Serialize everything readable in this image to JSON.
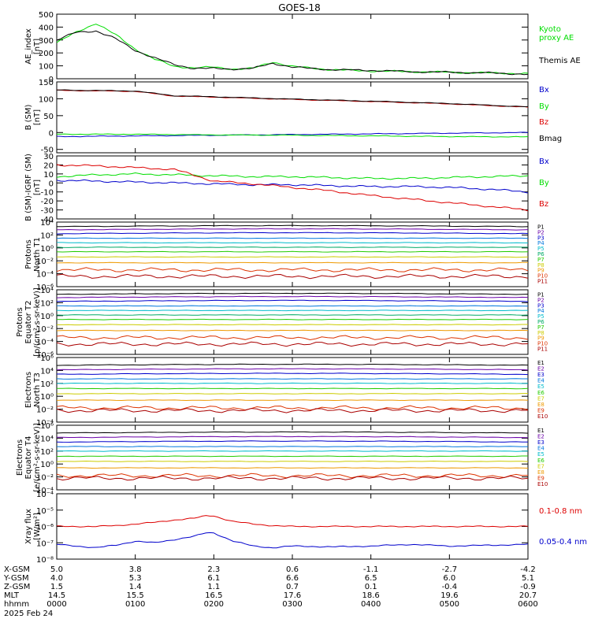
{
  "title": "GOES-18",
  "colors": {
    "black": "#000000",
    "green": "#00dd00",
    "blue": "#0000cc",
    "red": "#dd0000"
  },
  "chart_data": [
    {
      "type": "line",
      "panel": "ae",
      "ylabel": [
        "AE_index",
        "[nT]"
      ],
      "ylim": [
        0,
        500
      ],
      "ticks": [
        "500",
        "400",
        "300",
        "200",
        "100",
        "0"
      ],
      "x": [
        0,
        0.25,
        0.5,
        0.75,
        1.0,
        1.25,
        1.5,
        1.75,
        2.0,
        2.25,
        2.5,
        2.75,
        3.0,
        3.5,
        4.0,
        4.5,
        5.0,
        5.5,
        6.0
      ],
      "series": [
        {
          "name": "Kyoto proxy AE",
          "color": "#00dd00",
          "values": [
            280,
            360,
            430,
            340,
            230,
            150,
            95,
            85,
            90,
            75,
            80,
            130,
            95,
            70,
            60,
            55,
            50,
            45,
            40
          ]
        },
        {
          "name": "Themis AE",
          "color": "#000000",
          "values": [
            300,
            360,
            370,
            310,
            220,
            160,
            110,
            80,
            80,
            75,
            80,
            120,
            90,
            70,
            65,
            55,
            50,
            45,
            35
          ]
        }
      ]
    },
    {
      "type": "line",
      "panel": "b",
      "ylabel": [
        "B (SM)",
        "[nT]"
      ],
      "ylim": [
        -60,
        150
      ],
      "ticks": [
        "150",
        "100",
        "50",
        "0",
        "-50"
      ],
      "x": [
        0,
        1,
        1.5,
        2,
        3,
        4,
        5,
        6
      ],
      "series": [
        {
          "name": "Bx",
          "color": "#0000cc",
          "values": [
            -12,
            -10,
            -9,
            -8,
            -6,
            -4,
            -2,
            0
          ]
        },
        {
          "name": "By",
          "color": "#00dd00",
          "values": [
            -5,
            -5,
            -6,
            -7,
            -8,
            -10,
            -12,
            -13
          ]
        },
        {
          "name": "Bz",
          "color": "#dd0000",
          "values": [
            125,
            122,
            108,
            105,
            98,
            92,
            85,
            75
          ]
        },
        {
          "name": "Bmag",
          "color": "#000000",
          "values": [
            126,
            123,
            109,
            106,
            99,
            93,
            86,
            76
          ]
        }
      ]
    },
    {
      "type": "line",
      "panel": "db",
      "ylabel": [
        "B (SM)-IGRF (SM)",
        "[nT]"
      ],
      "ylim": [
        -40,
        30
      ],
      "ticks": [
        "30",
        "20",
        "10",
        "0",
        "-10",
        "-20",
        "-30",
        "-40"
      ],
      "x": [
        0,
        0.5,
        1.0,
        1.5,
        2.0,
        2.5,
        3.0,
        3.5,
        4.0,
        4.5,
        5.0,
        5.5,
        6.0
      ],
      "series": [
        {
          "name": "Bx",
          "color": "#0000cc",
          "values": [
            3,
            2,
            1,
            0,
            -1,
            -2,
            -2,
            -3,
            -4,
            -4,
            -5,
            -7,
            -10
          ]
        },
        {
          "name": "By",
          "color": "#00dd00",
          "values": [
            7,
            9,
            10,
            9,
            8,
            7,
            7,
            6,
            5,
            5,
            6,
            7,
            8
          ]
        },
        {
          "name": "Bz",
          "color": "#dd0000",
          "values": [
            20,
            19,
            17,
            15,
            2,
            -1,
            -5,
            -9,
            -14,
            -18,
            -22,
            -26,
            -30
          ]
        }
      ]
    },
    {
      "type": "line",
      "panel": "p1",
      "ylabel": [
        "Protons",
        "North T1"
      ],
      "scale": "log",
      "ylim_exp": [
        -6,
        4
      ],
      "ticks_exp": [
        4,
        2,
        0,
        -2,
        -4,
        -6
      ],
      "series_names": [
        "P1",
        "P2",
        "P3",
        "P4",
        "P5",
        "P6",
        "P7",
        "P8",
        "P9",
        "P10",
        "P11"
      ],
      "series_colors": [
        "#000000",
        "#6a00a8",
        "#0000cc",
        "#0077dd",
        "#00bbcc",
        "#00aa66",
        "#22cc00",
        "#cccc00",
        "#ee9900",
        "#dd3300",
        "#aa0000"
      ],
      "series_levels_exp": [
        3.3,
        2.8,
        2.2,
        1.5,
        0.8,
        0.1,
        -0.6,
        -1.4,
        -2.3,
        -3.4,
        -4.4
      ]
    },
    {
      "type": "line",
      "panel": "p2",
      "ylabel": [
        "Protons",
        "Equator T2",
        "[p/(cm²-s-sr-keV)]"
      ],
      "scale": "log",
      "ylim_exp": [
        -6,
        4
      ],
      "ticks_exp": [
        4,
        2,
        0,
        -2,
        -4,
        -6
      ],
      "series_names": [
        "P1",
        "P2",
        "P3",
        "P4",
        "P5",
        "P6",
        "P7",
        "P8",
        "P9",
        "P10",
        "P11"
      ],
      "series_colors": [
        "#000000",
        "#6a00a8",
        "#0000cc",
        "#0077dd",
        "#00bbcc",
        "#00aa66",
        "#22cc00",
        "#cccc00",
        "#ee9900",
        "#dd3300",
        "#aa0000"
      ],
      "series_levels_exp": [
        3.3,
        2.8,
        2.2,
        1.5,
        0.8,
        0.1,
        -0.6,
        -1.4,
        -2.3,
        -3.4,
        -4.4
      ]
    },
    {
      "type": "line",
      "panel": "e1",
      "ylabel": [
        "Electrons",
        "North T3"
      ],
      "scale": "log",
      "ylim_exp": [
        -4,
        6
      ],
      "ticks_exp": [
        6,
        4,
        2,
        0,
        -2,
        -4
      ],
      "series_names": [
        "E1",
        "E2",
        "E3",
        "E4",
        "E5",
        "E6",
        "E7",
        "E8",
        "E9",
        "E10"
      ],
      "series_colors": [
        "#000000",
        "#6a00a8",
        "#0000cc",
        "#0077dd",
        "#00bbcc",
        "#22cc00",
        "#cccc00",
        "#ee9900",
        "#dd3300",
        "#aa0000"
      ],
      "series_levels_exp": [
        4.8,
        4.1,
        3.4,
        2.7,
        2.0,
        1.2,
        0.4,
        -0.6,
        -1.8,
        -2.2
      ]
    },
    {
      "type": "line",
      "panel": "e2",
      "ylabel": [
        "Electrons",
        "Equator T4",
        "[e/(cm²-s-sr-keV)]"
      ],
      "scale": "log",
      "ylim_exp": [
        -4,
        6
      ],
      "ticks_exp": [
        6,
        4,
        2,
        0,
        -2,
        -4
      ],
      "series_names": [
        "E1",
        "E2",
        "E3",
        "E4",
        "E5",
        "E6",
        "E7",
        "E8",
        "E9",
        "E10"
      ],
      "series_colors": [
        "#000000",
        "#6a00a8",
        "#0000cc",
        "#0077dd",
        "#00bbcc",
        "#22cc00",
        "#cccc00",
        "#ee9900",
        "#dd3300",
        "#aa0000"
      ],
      "series_levels_exp": [
        4.8,
        4.1,
        3.4,
        2.7,
        2.0,
        1.2,
        0.4,
        -0.6,
        -1.8,
        -2.2
      ]
    },
    {
      "type": "line",
      "panel": "xray",
      "ylabel": [
        "Xray flux",
        "[W/m²]"
      ],
      "scale": "log",
      "ylim_exp": [
        -8,
        -4
      ],
      "ticks_exp": [
        -4,
        -5,
        -6,
        -7,
        -8
      ],
      "x": [
        0,
        0.25,
        0.5,
        0.75,
        1.0,
        1.25,
        1.5,
        1.75,
        1.9,
        2.0,
        2.1,
        2.25,
        2.5,
        2.75,
        3.0,
        3.5,
        4.0,
        4.5,
        5.0,
        5.5,
        6.0
      ],
      "series": [
        {
          "name": "0.1-0.8 nm",
          "color": "#dd0000",
          "values_exp": [
            -6.0,
            -6.0,
            -6.0,
            -5.95,
            -5.85,
            -5.75,
            -5.6,
            -5.5,
            -5.35,
            -5.35,
            -5.5,
            -5.7,
            -5.85,
            -5.95,
            -6.0,
            -6.0,
            -6.0,
            -6.0,
            -6.0,
            -6.0,
            -6.0
          ]
        },
        {
          "name": "0.05-0.4 nm",
          "color": "#0000cc",
          "values_exp": [
            -7.1,
            -7.2,
            -7.3,
            -7.15,
            -6.9,
            -7.0,
            -6.8,
            -6.6,
            -6.4,
            -6.4,
            -6.6,
            -6.9,
            -7.2,
            -7.3,
            -7.2,
            -7.25,
            -7.2,
            -7.1,
            -7.2,
            -7.15,
            -7.1
          ]
        }
      ]
    }
  ],
  "panel_labels": {
    "ae": [
      "Kyoto proxy AE",
      "Themis AE"
    ],
    "b": [
      "Bx",
      "By",
      "Bz",
      "Bmag"
    ],
    "db": [
      "Bx",
      "By",
      "Bz"
    ],
    "xray": [
      "0.1-0.8 nm",
      "0.05-0.4 nm"
    ]
  },
  "footer": {
    "row_labels": [
      "X-GSM",
      "Y-GSM",
      "Z-GSM",
      "MLT",
      "hhmm"
    ],
    "columns": [
      [
        "5.0",
        "4.0",
        "1.5",
        "14.5",
        "0000"
      ],
      [
        "3.8",
        "5.3",
        "1.4",
        "15.5",
        "0100"
      ],
      [
        "2.3",
        "6.1",
        "1.1",
        "16.5",
        "0200"
      ],
      [
        "0.6",
        "6.6",
        "0.7",
        "17.6",
        "0300"
      ],
      [
        "-1.1",
        "6.5",
        "0.1",
        "18.6",
        "0400"
      ],
      [
        "-2.7",
        "6.0",
        "-0.4",
        "19.6",
        "0500"
      ],
      [
        "-4.2",
        "5.1",
        "-0.9",
        "20.7",
        "0600"
      ]
    ],
    "date": "2025 Feb 24"
  }
}
